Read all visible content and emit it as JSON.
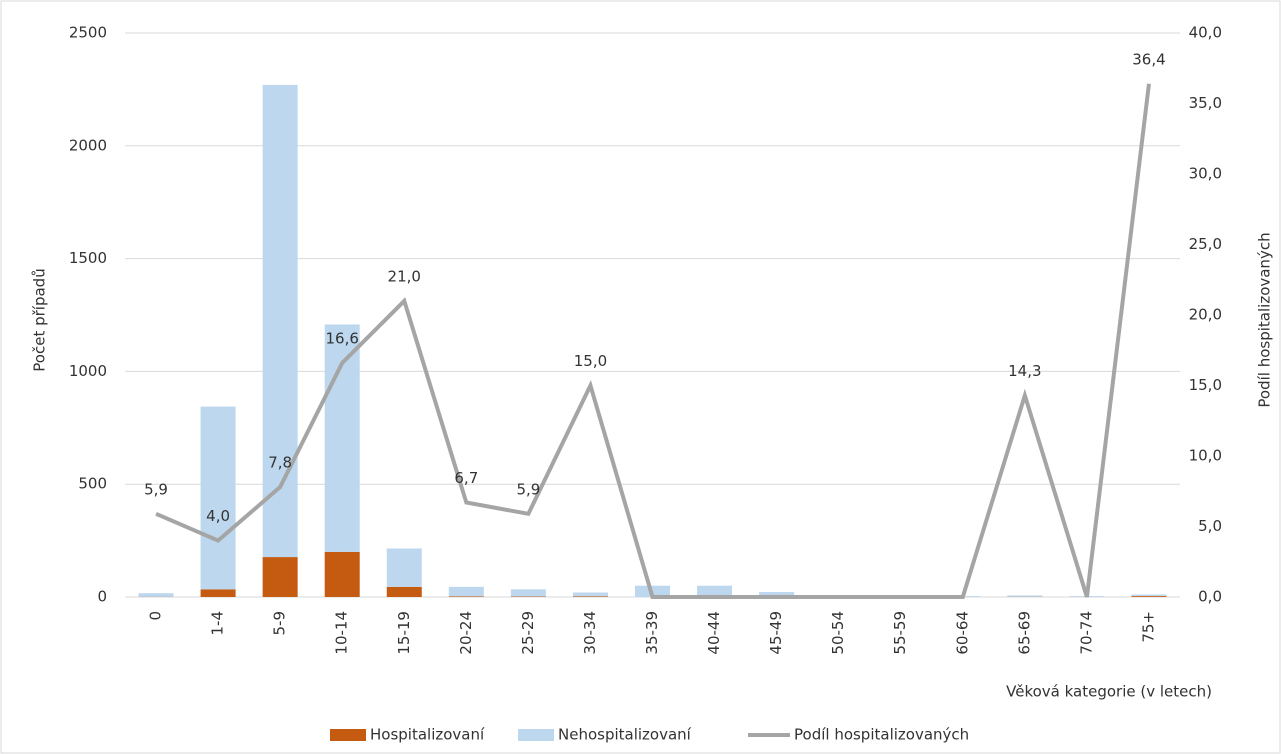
{
  "chart_data": {
    "type": "bar-line",
    "categories": [
      "0",
      "1-4",
      "5-9",
      "10-14",
      "15-19",
      "20-24",
      "25-29",
      "30-34",
      "35-39",
      "40-44",
      "45-49",
      "50-54",
      "55-59",
      "60-64",
      "65-69",
      "70-74",
      "75+"
    ],
    "series": [
      {
        "name": "Hospitalizovaní",
        "color": "#c55a11",
        "type": "bar",
        "stack": "a",
        "values": [
          1,
          34,
          177,
          200,
          45,
          3,
          2,
          3,
          0,
          0,
          0,
          0,
          0,
          0,
          1,
          0,
          4
        ]
      },
      {
        "name": "Nehospitalizovaní",
        "color": "#bdd7ee",
        "type": "bar",
        "stack": "a",
        "values": [
          16,
          810,
          2093,
          1008,
          170,
          42,
          32,
          17,
          50,
          50,
          22,
          8,
          3,
          4,
          6,
          4,
          7
        ]
      },
      {
        "name": "Podíl hospitalizovaných",
        "color": "#a5a5a5",
        "type": "line",
        "axis": "y2",
        "values": [
          5.9,
          4.0,
          7.8,
          16.6,
          21.0,
          6.7,
          5.9,
          15.0,
          0,
          0,
          0,
          0,
          0,
          0,
          14.3,
          0,
          36.4
        ],
        "value_labels": [
          "5,9",
          "4,0",
          "7,8",
          "16,6",
          "21,0",
          "6,7",
          "5,9",
          "15,0",
          null,
          null,
          null,
          null,
          null,
          null,
          "14,3",
          null,
          "36,4"
        ]
      }
    ],
    "ylabel": "Počet případů",
    "y2label": "Podíl hospitalizovaných",
    "xlabel": "Věková kategorie (v letech)",
    "ylim": [
      0,
      2500
    ],
    "yticks": [
      0,
      500,
      1000,
      1500,
      2000,
      2500
    ],
    "y2lim": [
      0,
      40
    ],
    "y2ticks": [
      {
        "value": 0,
        "label": "0,0"
      },
      {
        "value": 5,
        "label": "5,0"
      },
      {
        "value": 10,
        "label": "10,0"
      },
      {
        "value": 15,
        "label": "15,0"
      },
      {
        "value": 20,
        "label": "20,0"
      },
      {
        "value": 25,
        "label": "25,0"
      },
      {
        "value": 30,
        "label": "30,0"
      },
      {
        "value": 35,
        "label": "35,0"
      },
      {
        "value": 40,
        "label": "40,0"
      }
    ],
    "grid": true,
    "legend": "bottom"
  }
}
